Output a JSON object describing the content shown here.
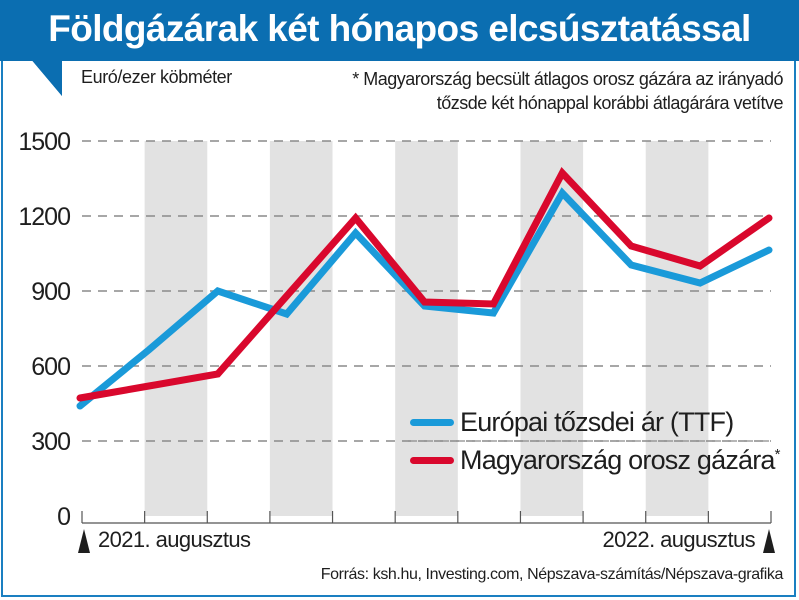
{
  "header": {
    "title": "Földgázárak két hónapos elcsúsztatással"
  },
  "chart_data": {
    "type": "line",
    "title": "Földgázárak két hónapos elcsúsztatással",
    "ylabel": "Euró/ezer köbméter",
    "note": "* Magyarország becsült átlagos orosz gázára az irányadó tőzsde két hónappal korábbi átlagárára vetítve",
    "note_lines": [
      "* Magyarország becsült átlagos orosz gázára az irányadó",
      "tőzsde két hónappal korábbi átlagárára vetítve"
    ],
    "ylim": [
      0,
      1500
    ],
    "yticks": [
      0,
      300,
      600,
      900,
      1200,
      1500
    ],
    "ytick_labels": [
      "0",
      "300",
      "600",
      "900",
      "1200",
      "1500"
    ],
    "grid": true,
    "x_start_label": "2021. augusztus",
    "x_end_label": "2022. augusztus",
    "x_month_ticks": 12,
    "x": [
      0,
      1,
      2,
      3,
      4,
      5,
      6,
      7,
      8,
      9,
      10
    ],
    "series": [
      {
        "name": "Európai tőzsdei ár (TTF)",
        "color": "#1a9ad9",
        "values": [
          440,
          665,
          900,
          808,
          1132,
          840,
          812,
          1292,
          1004,
          932,
          1064
        ]
      },
      {
        "name": "Magyarország orosz gázára",
        "name_suffix": "*",
        "color": "#d9082d",
        "values": [
          472,
          520,
          568,
          880,
          1192,
          856,
          848,
          1372,
          1080,
          1000,
          1192
        ]
      }
    ],
    "legend_position": "bottom-right",
    "source": "Forrás: ksh.hu, Investing.com, Népszava-számítás/Népszava-grafika"
  },
  "colors": {
    "brand_blue": "#0b6eb1",
    "band_gray": "#e2e2e2",
    "grid_gray": "#8a8a8a"
  }
}
